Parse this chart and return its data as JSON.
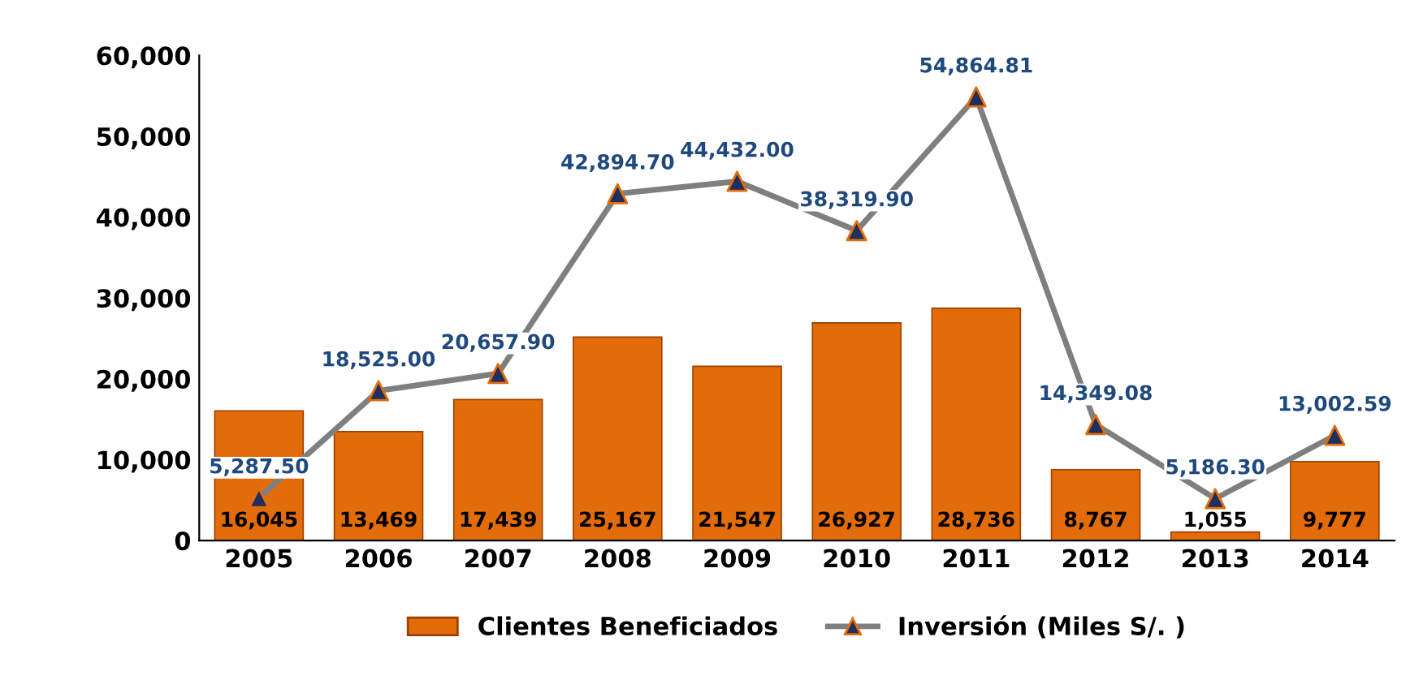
{
  "chart_data": {
    "type": "bar",
    "categories": [
      "2005",
      "2006",
      "2007",
      "2008",
      "2009",
      "2010",
      "2011",
      "2012",
      "2013",
      "2014"
    ],
    "series": [
      {
        "name": "Clientes Beneficiados",
        "color": "#e36c0a",
        "values": [
          16045,
          13469,
          17439,
          25167,
          21547,
          26927,
          28736,
          8767,
          1055,
          9777
        ],
        "value_labels": [
          "16,045",
          "13,469",
          "17,439",
          "25,167",
          "21,547",
          "26,927",
          "28,736",
          "8,767",
          "1,055",
          "9,777"
        ]
      },
      {
        "name": "Inversión (Miles S/. )",
        "type": "line",
        "color": "#7f7f7f",
        "marker": "triangle",
        "values": [
          5287.5,
          18525.0,
          20657.9,
          42894.7,
          44432.0,
          38319.9,
          54864.81,
          14349.08,
          5186.3,
          13002.59
        ],
        "value_labels": [
          "5,287.50",
          "18,525.00",
          "20,657.90",
          "42,894.70",
          "44,432.00",
          "38,319.90",
          "54,864.81",
          "14,349.08",
          "5,186.30",
          "13,002.59"
        ]
      }
    ],
    "ylim": [
      0,
      60000
    ],
    "yticks": [
      {
        "value": 0,
        "label": "0"
      },
      {
        "value": 10000,
        "label": "10,000"
      },
      {
        "value": 20000,
        "label": "20,000"
      },
      {
        "value": 30000,
        "label": "30,000"
      },
      {
        "value": 40000,
        "label": "40,000"
      },
      {
        "value": 50000,
        "label": "50,000"
      },
      {
        "value": 60000,
        "label": "60,000"
      }
    ],
    "grid": false,
    "legend": "bottom"
  }
}
